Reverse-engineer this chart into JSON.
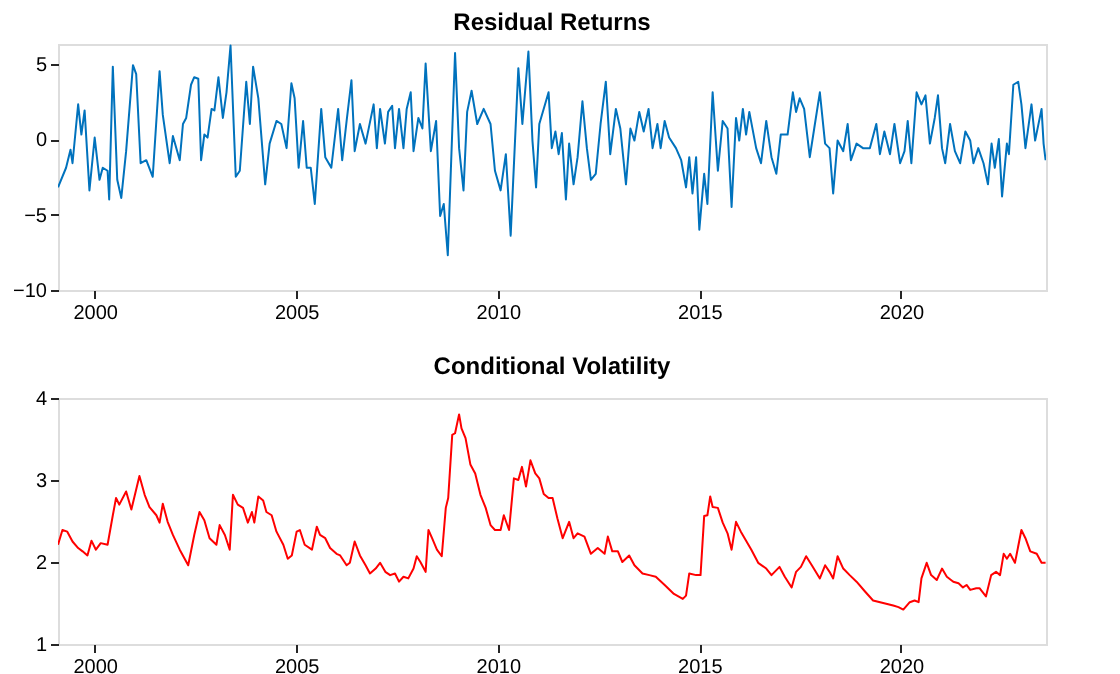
{
  "chart_data": [
    {
      "type": "line",
      "title": "Residual Returns",
      "xlim": [
        1999.09,
        2023.6
      ],
      "xticks": [
        2000,
        2005,
        2010,
        2015,
        2020
      ],
      "ylim": [
        -10,
        6.3
      ],
      "yticks": [
        -10,
        -5,
        0,
        5
      ],
      "grid": false,
      "x": [
        1999.09,
        1999.29,
        1999.4,
        1999.45,
        1999.59,
        1999.67,
        1999.75,
        1999.87,
        2000.0,
        2000.12,
        2000.2,
        2000.32,
        2000.36,
        2000.45,
        2000.56,
        2000.66,
        2000.78,
        2000.95,
        2001.03,
        2001.14,
        2001.28,
        2001.44,
        2001.61,
        2001.69,
        2001.86,
        2001.94,
        2002.11,
        2002.19,
        2002.27,
        2002.39,
        2002.47,
        2002.57,
        2002.64,
        2002.72,
        2002.8,
        2002.9,
        2002.97,
        2003.07,
        2003.18,
        2003.27,
        2003.37,
        2003.5,
        2003.6,
        2003.76,
        2003.85,
        2003.93,
        2004.06,
        2004.23,
        2004.34,
        2004.51,
        2004.63,
        2004.76,
        2004.88,
        2004.96,
        2005.06,
        2005.17,
        2005.26,
        2005.36,
        2005.46,
        2005.62,
        2005.72,
        2005.87,
        2006.04,
        2006.14,
        2006.25,
        2006.37,
        2006.45,
        2006.58,
        2006.72,
        2006.92,
        2007.0,
        2007.08,
        2007.2,
        2007.28,
        2007.38,
        2007.45,
        2007.55,
        2007.66,
        2007.74,
        2007.84,
        2007.91,
        2008.03,
        2008.13,
        2008.21,
        2008.34,
        2008.47,
        2008.57,
        2008.66,
        2008.76,
        2008.94,
        2009.04,
        2009.15,
        2009.24,
        2009.35,
        2009.49,
        2009.65,
        2009.82,
        2009.93,
        2010.07,
        2010.2,
        2010.32,
        2010.51,
        2010.61,
        2010.76,
        2010.86,
        2010.95,
        2011.03,
        2011.26,
        2011.34,
        2011.43,
        2011.51,
        2011.59,
        2011.69,
        2011.77,
        2011.88,
        2011.98,
        2012.1,
        2012.21,
        2012.31,
        2012.43,
        2012.55,
        2012.68,
        2012.79,
        2012.93,
        2013.04,
        2013.18,
        2013.29,
        2013.39,
        2013.51,
        2013.62,
        2013.74,
        2013.84,
        2013.96,
        2014.04,
        2014.14,
        2014.25,
        2014.42,
        2014.55,
        2014.67,
        2014.75,
        2014.83,
        2014.92,
        2015.0,
        2015.12,
        2015.2,
        2015.33,
        2015.46,
        2015.58,
        2015.7,
        2015.8,
        2015.91,
        2015.99,
        2016.08,
        2016.16,
        2016.24,
        2016.41,
        2016.53,
        2016.66,
        2016.79,
        2016.91,
        2017.02,
        2017.19,
        2017.32,
        2017.4,
        2017.49,
        2017.6,
        2017.74,
        2017.85,
        2017.99,
        2018.12,
        2018.23,
        2018.32,
        2018.43,
        2018.57,
        2018.68,
        2018.76,
        2018.9,
        2019.06,
        2019.23,
        2019.39,
        2019.48,
        2019.59,
        2019.73,
        2019.84,
        2019.98,
        2020.09,
        2020.17,
        2020.26,
        2020.39,
        2020.51,
        2020.61,
        2020.72,
        2020.84,
        2020.92,
        2021.02,
        2021.1,
        2021.22,
        2021.34,
        2021.47,
        2021.6,
        2021.72,
        2021.8,
        2021.92,
        2022.05,
        2022.16,
        2022.25,
        2022.33,
        2022.43,
        2022.51,
        2022.63,
        2022.68,
        2022.79,
        2022.91,
        2022.99,
        2023.09,
        2023.24,
        2023.33,
        2023.49,
        2023.54,
        2023.59
      ],
      "series": [
        {
          "color": "#0072bd",
          "values": [
            -3.2,
            -1.9,
            -0.7,
            -1.6,
            2.3,
            0.3,
            1.9,
            -3.4,
            0.1,
            -2.7,
            -1.9,
            -2.1,
            -4.0,
            4.8,
            -2.7,
            -3.9,
            -0.8,
            4.9,
            4.3,
            -1.6,
            -1.4,
            -2.5,
            4.5,
            1.6,
            -1.6,
            0.2,
            -1.4,
            1.0,
            1.4,
            3.6,
            4.1,
            4.0,
            -1.4,
            0.3,
            0.1,
            2.0,
            1.9,
            4.1,
            1.4,
            3.1,
            6.2,
            -2.5,
            -2.1,
            3.8,
            1.0,
            4.8,
            2.7,
            -3.0,
            -0.3,
            1.2,
            1.0,
            -0.6,
            3.7,
            2.7,
            -1.9,
            1.2,
            -1.9,
            -1.9,
            -4.3,
            2.0,
            -1.2,
            -1.9,
            2.0,
            -1.4,
            1.2,
            3.9,
            -0.8,
            1.0,
            -0.3,
            2.3,
            -0.6,
            2.0,
            -0.3,
            1.8,
            2.2,
            -0.6,
            2.0,
            -0.6,
            2.0,
            3.1,
            -0.8,
            1.4,
            0.7,
            5.0,
            -0.8,
            1.2,
            -5.1,
            -4.3,
            -7.7,
            5.7,
            -0.6,
            -3.4,
            1.8,
            3.2,
            1.0,
            2.0,
            1.0,
            -2.1,
            -3.4,
            -1.0,
            -6.4,
            4.7,
            1.0,
            5.8,
            -0.1,
            -3.2,
            1.0,
            3.1,
            -0.6,
            0.5,
            -1.0,
            0.4,
            -4.0,
            -0.3,
            -3.0,
            -1.2,
            2.5,
            -0.6,
            -2.7,
            -2.3,
            1.0,
            3.8,
            -1.0,
            2.0,
            0.7,
            -3.0,
            0.7,
            -0.1,
            1.8,
            0.5,
            2.0,
            -0.6,
            1.0,
            -0.6,
            1.2,
            0.1,
            -0.6,
            -1.4,
            -3.2,
            -1.2,
            -3.6,
            -1.2,
            -6.0,
            -2.3,
            -4.3,
            3.1,
            -2.1,
            1.2,
            0.7,
            -4.5,
            1.4,
            -0.1,
            2.0,
            0.3,
            1.8,
            -0.6,
            -1.6,
            1.2,
            -1.2,
            -2.3,
            0.3,
            0.3,
            3.1,
            1.8,
            2.7,
            2.0,
            -1.2,
            0.7,
            3.1,
            -0.3,
            -0.6,
            -3.6,
            -0.1,
            -0.8,
            1.0,
            -1.4,
            -0.3,
            -0.6,
            -0.6,
            1.0,
            -1.0,
            0.5,
            -1.0,
            1.0,
            -1.6,
            -0.8,
            1.2,
            -1.6,
            3.1,
            2.3,
            2.9,
            -0.3,
            1.4,
            2.9,
            -0.6,
            -1.6,
            1.0,
            -0.8,
            -1.6,
            0.5,
            -0.1,
            -1.6,
            -0.6,
            -1.6,
            -3.0,
            -0.3,
            -1.9,
            0.0,
            -3.8,
            -0.3,
            -1.0,
            3.6,
            3.8,
            2.3,
            -0.6,
            2.3,
            -0.1,
            2.0,
            -0.3,
            -1.4
          ]
        }
      ]
    },
    {
      "type": "line",
      "title": "Conditional Volatility",
      "xlim": [
        1999.09,
        2023.6
      ],
      "xticks": [
        2000,
        2005,
        2010,
        2015,
        2020
      ],
      "ylim": [
        1,
        4
      ],
      "yticks": [
        1,
        2,
        3,
        4
      ],
      "grid": false,
      "x": [
        1999.09,
        1999.2,
        1999.32,
        1999.45,
        1999.59,
        1999.7,
        1999.82,
        1999.92,
        2000.03,
        2000.15,
        2000.32,
        2000.45,
        2000.53,
        2000.61,
        2000.78,
        2000.91,
        2001.11,
        2001.24,
        2001.36,
        2001.53,
        2001.61,
        2001.69,
        2001.81,
        2001.94,
        2002.11,
        2002.32,
        2002.47,
        2002.6,
        2002.72,
        2002.85,
        2003.02,
        2003.1,
        2003.23,
        2003.35,
        2003.43,
        2003.55,
        2003.68,
        2003.8,
        2003.9,
        2003.96,
        2004.06,
        2004.18,
        2004.26,
        2004.39,
        2004.51,
        2004.68,
        2004.79,
        2004.89,
        2005.01,
        2005.09,
        2005.21,
        2005.39,
        2005.51,
        2005.59,
        2005.72,
        2005.84,
        2006.0,
        2006.09,
        2006.25,
        2006.33,
        2006.45,
        2006.58,
        2006.72,
        2006.83,
        2006.97,
        2007.08,
        2007.21,
        2007.33,
        2007.45,
        2007.55,
        2007.66,
        2007.78,
        2007.91,
        2007.99,
        2008.08,
        2008.21,
        2008.28,
        2008.37,
        2008.49,
        2008.61,
        2008.71,
        2008.77,
        2008.87,
        2008.94,
        2009.04,
        2009.1,
        2009.2,
        2009.32,
        2009.44,
        2009.57,
        2009.7,
        2009.82,
        2009.93,
        2010.07,
        2010.15,
        2010.28,
        2010.4,
        2010.51,
        2010.6,
        2010.7,
        2010.81,
        2010.93,
        2011.03,
        2011.14,
        2011.26,
        2011.36,
        2011.48,
        2011.61,
        2011.77,
        2011.88,
        2011.98,
        2012.15,
        2012.31,
        2012.48,
        2012.65,
        2012.73,
        2012.84,
        2012.98,
        2013.09,
        2013.26,
        2013.39,
        2013.59,
        2013.76,
        2013.92,
        2014.14,
        2014.37,
        2014.59,
        2014.67,
        2014.75,
        2014.92,
        2015.03,
        2015.12,
        2015.2,
        2015.27,
        2015.33,
        2015.46,
        2015.58,
        2015.7,
        2015.8,
        2015.91,
        2016.03,
        2016.16,
        2016.29,
        2016.46,
        2016.66,
        2016.79,
        2016.99,
        2017.12,
        2017.29,
        2017.4,
        2017.52,
        2017.65,
        2017.79,
        2017.99,
        2018.12,
        2018.23,
        2018.32,
        2018.43,
        2018.57,
        2018.73,
        2018.9,
        2019.11,
        2019.31,
        2019.56,
        2019.81,
        2019.94,
        2020.06,
        2020.22,
        2020.34,
        2020.44,
        2020.51,
        2020.64,
        2020.75,
        2020.89,
        2021.02,
        2021.14,
        2021.3,
        2021.43,
        2021.54,
        2021.63,
        2021.72,
        2021.87,
        2021.95,
        2022.11,
        2022.24,
        2022.36,
        2022.46,
        2022.55,
        2022.63,
        2022.71,
        2022.83,
        2022.99,
        2023.09,
        2023.21,
        2023.37,
        2023.49,
        2023.59
      ],
      "series": [
        {
          "color": "#ff0000",
          "values": [
            2.21,
            2.39,
            2.37,
            2.25,
            2.17,
            2.13,
            2.08,
            2.26,
            2.15,
            2.23,
            2.21,
            2.57,
            2.78,
            2.7,
            2.86,
            2.64,
            3.05,
            2.82,
            2.67,
            2.57,
            2.48,
            2.71,
            2.49,
            2.33,
            2.15,
            1.96,
            2.33,
            2.61,
            2.51,
            2.29,
            2.21,
            2.45,
            2.33,
            2.15,
            2.82,
            2.7,
            2.66,
            2.48,
            2.61,
            2.48,
            2.8,
            2.75,
            2.61,
            2.57,
            2.37,
            2.21,
            2.04,
            2.08,
            2.37,
            2.39,
            2.21,
            2.15,
            2.43,
            2.33,
            2.29,
            2.17,
            2.1,
            2.08,
            1.96,
            1.99,
            2.25,
            2.08,
            1.96,
            1.86,
            1.92,
            1.99,
            1.88,
            1.84,
            1.86,
            1.76,
            1.82,
            1.8,
            1.92,
            2.07,
            2.0,
            1.88,
            2.39,
            2.29,
            2.15,
            2.07,
            2.66,
            2.78,
            3.55,
            3.57,
            3.8,
            3.63,
            3.51,
            3.19,
            3.08,
            2.82,
            2.66,
            2.45,
            2.39,
            2.39,
            2.57,
            2.39,
            3.02,
            3.0,
            3.16,
            2.92,
            3.24,
            3.08,
            3.02,
            2.83,
            2.78,
            2.78,
            2.53,
            2.29,
            2.49,
            2.29,
            2.35,
            2.31,
            2.1,
            2.17,
            2.1,
            2.31,
            2.13,
            2.13,
            2.0,
            2.08,
            1.96,
            1.86,
            1.84,
            1.82,
            1.72,
            1.61,
            1.55,
            1.59,
            1.86,
            1.84,
            1.84,
            2.56,
            2.57,
            2.8,
            2.67,
            2.66,
            2.48,
            2.35,
            2.15,
            2.49,
            2.37,
            2.26,
            2.15,
            1.99,
            1.92,
            1.84,
            1.94,
            1.82,
            1.69,
            1.88,
            1.94,
            2.07,
            1.96,
            1.8,
            1.96,
            1.88,
            1.8,
            2.07,
            1.92,
            1.84,
            1.76,
            1.64,
            1.53,
            1.5,
            1.47,
            1.45,
            1.42,
            1.51,
            1.53,
            1.51,
            1.8,
            1.99,
            1.84,
            1.78,
            1.92,
            1.82,
            1.76,
            1.74,
            1.69,
            1.72,
            1.66,
            1.68,
            1.68,
            1.58,
            1.84,
            1.88,
            1.84,
            2.1,
            2.04,
            2.1,
            1.99,
            2.39,
            2.29,
            2.13,
            2.1,
            1.99,
            1.99
          ]
        }
      ]
    }
  ]
}
